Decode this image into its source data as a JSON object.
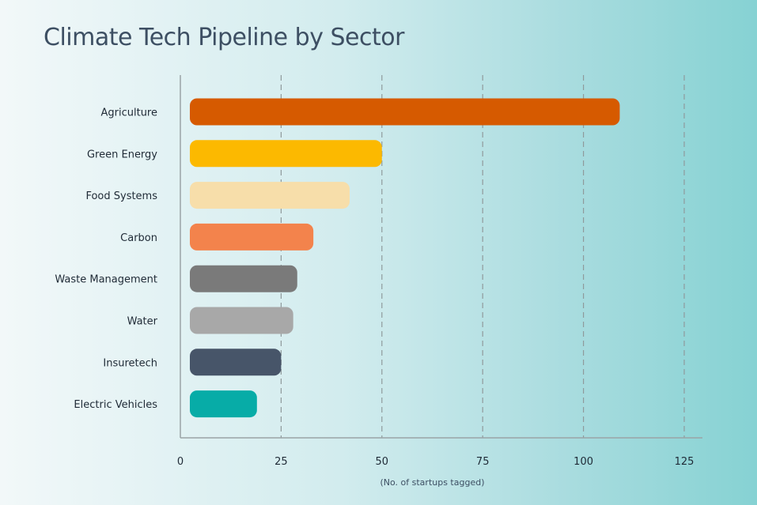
{
  "chart_data": {
    "type": "bar",
    "orientation": "horizontal",
    "title": "Climate Tech Pipeline by Sector",
    "xlabel": "(No. of startups tagged)",
    "ylabel": "",
    "categories": [
      "Agriculture",
      "Green Energy",
      "Food Systems",
      "Carbon",
      "Waste Management",
      "Water",
      "Insuretech",
      "Electric Vehicles"
    ],
    "values": [
      109,
      50,
      42,
      33,
      29,
      28,
      25,
      19
    ],
    "colors": [
      "#d65a00",
      "#fcb900",
      "#f7deaa",
      "#f3834c",
      "#7a7a7a",
      "#a8a8a8",
      "#475569",
      "#07aca7"
    ],
    "xlim": [
      0,
      125
    ],
    "xticks": [
      "0",
      "25",
      "50",
      "75",
      "100",
      "125"
    ],
    "grid": "vertical dashed"
  }
}
